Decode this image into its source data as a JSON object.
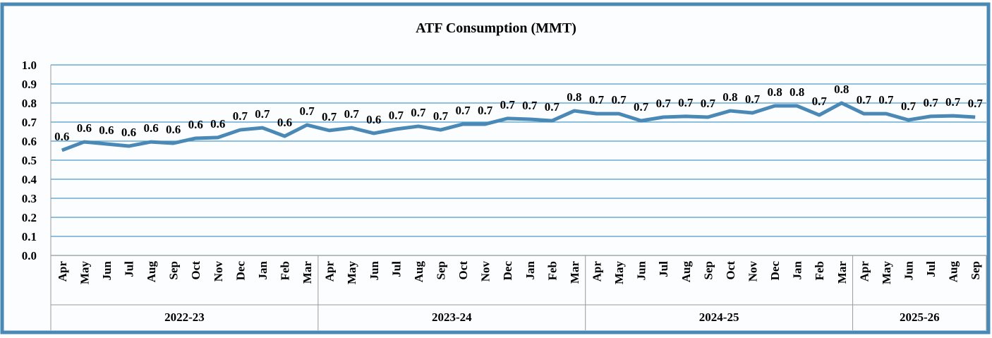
{
  "chart_data": {
    "type": "line",
    "title": "ATF Consumption (MMT)",
    "categories": [
      "Apr",
      "May",
      "Jun",
      "Jul",
      "Aug",
      "Sep",
      "Oct",
      "Nov",
      "Dec",
      "Jan",
      "Feb",
      "Mar",
      "Apr",
      "May",
      "Jun",
      "Jul",
      "Aug",
      "Sep",
      "Oct",
      "Nov",
      "Dec",
      "Jan",
      "Feb",
      "Mar",
      "Apr",
      "May",
      "Jun",
      "Jul",
      "Aug",
      "Sep",
      "Oct",
      "Nov",
      "Dec",
      "Jan",
      "Feb",
      "Mar",
      "Apr",
      "May",
      "Jun",
      "Jul",
      "Aug",
      "Sep"
    ],
    "groups": [
      "2022-23",
      "2023-24",
      "2024-25",
      "2025-26"
    ],
    "values": [
      0.552,
      0.596,
      0.585,
      0.574,
      0.596,
      0.589,
      0.615,
      0.619,
      0.659,
      0.67,
      0.626,
      0.685,
      0.656,
      0.67,
      0.641,
      0.663,
      0.678,
      0.659,
      0.689,
      0.689,
      0.719,
      0.715,
      0.707,
      0.759,
      0.744,
      0.744,
      0.707,
      0.726,
      0.73,
      0.726,
      0.759,
      0.748,
      0.785,
      0.785,
      0.737,
      0.8,
      0.744,
      0.744,
      0.711,
      0.73,
      0.733,
      0.726
    ],
    "value_labels": [
      "0.6",
      "0.6",
      "0.6",
      "0.6",
      "0.6",
      "0.6",
      "0.6",
      "0.6",
      "0.7",
      "0.7",
      "0.6",
      "0.7",
      "0.7",
      "0.7",
      "0.6",
      "0.7",
      "0.7",
      "0.7",
      "0.7",
      "0.7",
      "0.7",
      "0.7",
      "0.7",
      "0.8",
      "0.7",
      "0.7",
      "0.7",
      "0.7",
      "0.7",
      "0.7",
      "0.8",
      "0.7",
      "0.8",
      "0.8",
      "0.7",
      "0.8",
      "0.7",
      "0.7",
      "0.7",
      "0.7",
      "0.7",
      "0.7"
    ],
    "color": "#4a88b6",
    "ylim": [
      0,
      1
    ],
    "yticks": [
      {
        "value": 0,
        "label": "0.0"
      },
      0.1,
      0.2,
      0.3,
      0.4,
      0.5,
      0.6,
      0.7,
      0.8,
      0.9,
      {
        "value": 1,
        "label": "1.0"
      }
    ],
    "grid": true
  }
}
